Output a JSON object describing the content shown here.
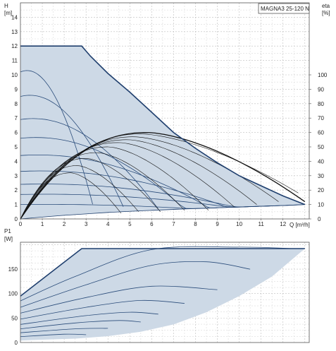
{
  "chart_data": [
    {
      "type": "line",
      "title": "MAGNA3 25-120 N",
      "xlabel": "Q [m³/h]",
      "ylabel": "H [m]",
      "y2label": "eta [%]",
      "xlim": [
        0,
        13.2
      ],
      "ylim": [
        0,
        15
      ],
      "y2lim": [
        0,
        150
      ],
      "grid": true,
      "x_ticks": [
        "0",
        "1",
        "2",
        "3",
        "4",
        "5",
        "6",
        "7",
        "8",
        "9",
        "10",
        "11",
        "12"
      ],
      "y_ticks": [
        "0",
        "1",
        "2",
        "3",
        "4",
        "5",
        "6",
        "7",
        "8",
        "9",
        "10",
        "11",
        "12",
        "13",
        "14"
      ],
      "y2_ticks": [
        "0",
        "10",
        "20",
        "30",
        "40",
        "50",
        "60",
        "70",
        "80",
        "90",
        "100"
      ],
      "envelope": {
        "x": [
          0,
          2.8,
          3.2,
          4,
          5,
          6,
          7,
          8,
          9,
          10,
          11,
          12,
          13
        ],
        "y": [
          12,
          12,
          11.3,
          10.1,
          8.8,
          7.4,
          6.0,
          4.9,
          3.9,
          3.0,
          2.3,
          1.6,
          1.0
        ]
      },
      "min_curve": {
        "x": [
          0,
          2,
          4,
          6,
          8,
          10,
          12,
          13
        ],
        "y": [
          0,
          0.25,
          0.45,
          0.6,
          0.72,
          0.83,
          0.93,
          1.0
        ]
      },
      "speed_curves": [
        {
          "h0": 10.2,
          "q_end": 3.3
        },
        {
          "h0": 8.5,
          "q_end": 4.7
        },
        {
          "h0": 6.9,
          "q_end": 6.3
        },
        {
          "h0": 5.6,
          "q_end": 7.6
        },
        {
          "h0": 4.4,
          "q_end": 9.0
        },
        {
          "h0": 3.3,
          "q_end": 10.3
        },
        {
          "h0": 2.4,
          "q_end": 11.4
        },
        {
          "h0": 1.7,
          "q_end": 12.4
        },
        {
          "h0": 1.0,
          "q_end": 13.0
        }
      ],
      "efficiency_series": [
        {
          "peak_q": 5.8,
          "peak_eta": 60,
          "end_q": 13.0,
          "end_eta": 12
        },
        {
          "peak_q": 5.5,
          "peak_eta": 59,
          "end_q": 12.7,
          "end_eta": 18
        },
        {
          "peak_q": 5.2,
          "peak_eta": 57,
          "end_q": 11.8,
          "end_eta": 12
        },
        {
          "peak_q": 4.9,
          "peak_eta": 55,
          "end_q": 10.8,
          "end_eta": 10
        },
        {
          "peak_q": 4.5,
          "peak_eta": 53,
          "end_q": 9.8,
          "end_eta": 8
        },
        {
          "peak_q": 4.0,
          "peak_eta": 50,
          "end_q": 8.6,
          "end_eta": 6
        },
        {
          "peak_q": 3.5,
          "peak_eta": 46,
          "end_q": 7.5,
          "end_eta": 6
        },
        {
          "peak_q": 3.0,
          "peak_eta": 42,
          "end_q": 6.4,
          "end_eta": 5
        },
        {
          "peak_q": 2.6,
          "peak_eta": 37,
          "end_q": 5.4,
          "end_eta": 5
        },
        {
          "peak_q": 2.3,
          "peak_eta": 32,
          "end_q": 4.6,
          "end_eta": 4
        }
      ]
    },
    {
      "type": "line",
      "ylabel": "P1 [W]",
      "xlim": [
        0,
        13.2
      ],
      "ylim": [
        0,
        205
      ],
      "grid": true,
      "y_ticks": [
        "0",
        "50",
        "100",
        "150"
      ],
      "envelope_upper": {
        "x": [
          0,
          2.8,
          13.0
        ],
        "y": [
          95,
          192,
          192
        ]
      },
      "envelope_right": {
        "x": [
          13.0,
          11.5,
          10.0,
          8.5,
          7.0,
          5.5,
          4.0,
          2.5,
          0.5
        ],
        "y": [
          192,
          135,
          95,
          62,
          37,
          22,
          13,
          8,
          5
        ]
      },
      "power_curves": [
        {
          "x": [
            0,
            2.5,
            6,
            10,
            12.5
          ],
          "y": [
            85,
            135,
            190,
            195,
            192
          ]
        },
        {
          "x": [
            0,
            3,
            6,
            8.5,
            10.5
          ],
          "y": [
            72,
            118,
            158,
            165,
            150
          ]
        },
        {
          "x": [
            0,
            3,
            6,
            9
          ],
          "y": [
            60,
            92,
            115,
            108
          ]
        },
        {
          "x": [
            0,
            3,
            5.5,
            7.5
          ],
          "y": [
            48,
            72,
            86,
            80
          ]
        },
        {
          "x": [
            0,
            3,
            5,
            6.3
          ],
          "y": [
            37,
            55,
            62,
            58
          ]
        },
        {
          "x": [
            0,
            2.5,
            4.5,
            5.5
          ],
          "y": [
            28,
            40,
            45,
            42
          ]
        },
        {
          "x": [
            0,
            2.5,
            4
          ],
          "y": [
            20,
            28,
            29
          ]
        },
        {
          "x": [
            0,
            2,
            3
          ],
          "y": [
            12,
            17,
            16
          ]
        }
      ]
    }
  ]
}
